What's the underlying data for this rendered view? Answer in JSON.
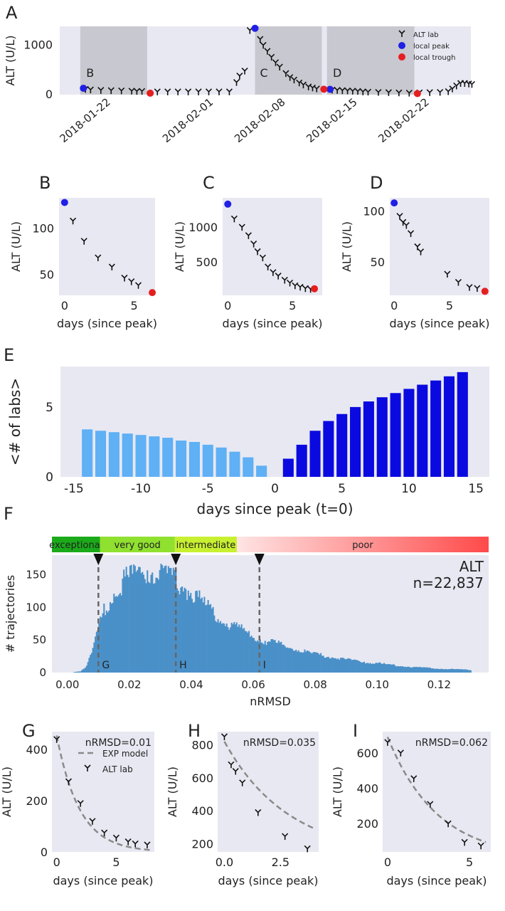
{
  "colors": {
    "panel_bg": "#e8e8f2",
    "shade": "#c8c8d0",
    "peak": "#1f1fe6",
    "trough": "#e51f1f",
    "marker": "#111111",
    "bar_before": "#5fb0f5",
    "bar_after": "#0a0ae0",
    "hist": "#4a90c8",
    "model": "#8a8a8a"
  },
  "chart_data": [
    {
      "panel": "A",
      "type": "scatter",
      "ylabel": "ALT (U/L)",
      "yticks": [
        0,
        1000
      ],
      "ylim": [
        0,
        1380
      ],
      "xlim": [
        "2018-01-17",
        "2018-02-26"
      ],
      "xticks": [
        "2018-01-22",
        "2018-02-01",
        "2018-02-08",
        "2018-02-15",
        "2018-02-22"
      ],
      "legend": {
        "placement": "top-right",
        "entries": [
          "ALT lab",
          "local peak",
          "local trough"
        ]
      },
      "annotations": [
        "B",
        "C",
        "D"
      ],
      "shaded_ranges": [
        [
          "2018-01-19",
          "2018-01-25.5"
        ],
        [
          "2018-02-05",
          "2018-02-11.5"
        ],
        [
          "2018-02-12",
          "2018-02-20.5"
        ]
      ],
      "lab": [
        [
          "2018-01-19.5",
          110
        ],
        [
          "2018-01-20",
          100
        ],
        [
          "2018-01-21",
          90
        ],
        [
          "2018-01-22",
          85
        ],
        [
          "2018-01-23",
          80
        ],
        [
          "2018-01-24",
          75
        ],
        [
          "2018-01-24.5",
          70
        ],
        [
          "2018-01-25",
          70
        ],
        [
          "2018-01-26.5",
          60
        ],
        [
          "2018-01-27.5",
          60
        ],
        [
          "2018-01-28.5",
          60
        ],
        [
          "2018-01-29.5",
          60
        ],
        [
          "2018-01-30.5",
          60
        ],
        [
          "2018-01-31.5",
          60
        ],
        [
          "2018-02-01.5",
          60
        ],
        [
          "2018-02-02.5",
          60
        ],
        [
          "2018-02-03.2",
          250
        ],
        [
          "2018-02-03.5",
          380
        ],
        [
          "2018-02-04",
          480
        ],
        [
          "2018-02-04.5",
          1300
        ],
        [
          "2018-02-05.5",
          1120
        ],
        [
          "2018-02-05.8",
          1000
        ],
        [
          "2018-02-06.2",
          880
        ],
        [
          "2018-02-06.6",
          760
        ],
        [
          "2018-02-07",
          650
        ],
        [
          "2018-02-07.4",
          560
        ],
        [
          "2018-02-08",
          430
        ],
        [
          "2018-02-08.4",
          350
        ],
        [
          "2018-02-08.8",
          300
        ],
        [
          "2018-02-09.3",
          240
        ],
        [
          "2018-02-09.7",
          200
        ],
        [
          "2018-02-10.2",
          160
        ],
        [
          "2018-02-10.6",
          140
        ],
        [
          "2018-02-11",
          120
        ],
        [
          "2018-02-12.5",
          95
        ],
        [
          "2018-02-13",
          90
        ],
        [
          "2018-02-13.5",
          85
        ],
        [
          "2018-02-14",
          80
        ],
        [
          "2018-02-14.5",
          75
        ],
        [
          "2018-02-15",
          70
        ],
        [
          "2018-02-15.5",
          60
        ],
        [
          "2018-02-16",
          55
        ],
        [
          "2018-02-17",
          50
        ],
        [
          "2018-02-18",
          45
        ],
        [
          "2018-02-19",
          40
        ],
        [
          "2018-02-20",
          35
        ],
        [
          "2018-02-21",
          40
        ],
        [
          "2018-02-22",
          45
        ],
        [
          "2018-02-23",
          50
        ],
        [
          "2018-02-23.8",
          65
        ],
        [
          "2018-02-24.2",
          120
        ],
        [
          "2018-02-24.6",
          180
        ],
        [
          "2018-02-25",
          230
        ],
        [
          "2018-02-25.4",
          230
        ],
        [
          "2018-02-25.8",
          220
        ],
        [
          "2018-02-26.1",
          210
        ]
      ],
      "peaks": [
        [
          "2018-01-19.3",
          130
        ],
        [
          "2018-02-05",
          1340
        ],
        [
          "2018-02-12.3",
          108
        ]
      ],
      "troughs": [
        [
          "2018-01-25.8",
          30
        ],
        [
          "2018-02-11.7",
          110
        ],
        [
          "2018-02-20.8",
          22
        ]
      ]
    },
    {
      "panel": "B",
      "type": "scatter",
      "xlabel": "days (since peak)",
      "ylabel": "ALT (U/L)",
      "xlim": [
        -0.4,
        6.5
      ],
      "ylim": [
        27,
        133
      ],
      "xticks": [
        0,
        5
      ],
      "yticks": [
        50,
        100
      ],
      "peak": [
        0,
        128
      ],
      "trough": [
        6.3,
        30
      ],
      "lab": [
        [
          0.6,
          108
        ],
        [
          1.4,
          86
        ],
        [
          2.4,
          68
        ],
        [
          3.4,
          58
        ],
        [
          4.3,
          46
        ],
        [
          4.8,
          42
        ],
        [
          5.3,
          38
        ]
      ]
    },
    {
      "panel": "C",
      "type": "scatter",
      "xlabel": "days (since peak)",
      "ylabel": "ALT (U/L)",
      "xlim": [
        -0.4,
        7.3
      ],
      "ylim": [
        20,
        1420
      ],
      "xticks": [
        0,
        5
      ],
      "yticks": [
        500,
        1000
      ],
      "peak": [
        0,
        1330
      ],
      "trough": [
        6.7,
        115
      ],
      "lab": [
        [
          0.5,
          1120
        ],
        [
          1.1,
          1000
        ],
        [
          1.6,
          880
        ],
        [
          2.0,
          760
        ],
        [
          2.3,
          650
        ],
        [
          2.7,
          560
        ],
        [
          3.1,
          430
        ],
        [
          3.5,
          350
        ],
        [
          3.9,
          300
        ],
        [
          4.4,
          240
        ],
        [
          4.8,
          200
        ],
        [
          5.2,
          160
        ],
        [
          5.6,
          140
        ],
        [
          6.0,
          120
        ],
        [
          6.4,
          110
        ]
      ]
    },
    {
      "panel": "D",
      "type": "scatter",
      "xlabel": "days (since peak)",
      "ylabel": "ALT (U/L)",
      "xlim": [
        -0.4,
        8.6
      ],
      "ylim": [
        17,
        113
      ],
      "xticks": [
        0,
        5
      ],
      "yticks": [
        50,
        100
      ],
      "peak": [
        0,
        108
      ],
      "trough": [
        8.2,
        21
      ],
      "lab": [
        [
          0.5,
          95
        ],
        [
          0.8,
          89
        ],
        [
          1.1,
          86
        ],
        [
          1.5,
          78
        ],
        [
          2.1,
          65
        ],
        [
          2.4,
          60
        ],
        [
          4.8,
          38
        ],
        [
          5.8,
          30
        ],
        [
          6.8,
          25
        ],
        [
          7.5,
          24
        ]
      ]
    },
    {
      "panel": "E",
      "type": "bar",
      "xlabel": "days since peak (t=0)",
      "ylabel": "<# of labs>",
      "xlim": [
        -16,
        16
      ],
      "ylim": [
        0,
        7.9
      ],
      "xticks": [
        -15,
        -10,
        -5,
        0,
        5,
        10,
        15
      ],
      "yticks": [
        0,
        5
      ],
      "before": {
        "x": [
          -14,
          -13,
          -12,
          -11,
          -10,
          -9,
          -8,
          -7,
          -6,
          -5,
          -4,
          -3,
          -2,
          -1
        ],
        "values": [
          3.4,
          3.3,
          3.2,
          3.1,
          3.0,
          2.9,
          2.8,
          2.6,
          2.5,
          2.3,
          2.1,
          1.8,
          1.4,
          0.8
        ]
      },
      "after": {
        "x": [
          1,
          2,
          3,
          4,
          5,
          6,
          7,
          8,
          9,
          10,
          11,
          12,
          13,
          14
        ],
        "values": [
          1.3,
          2.3,
          3.3,
          4.0,
          4.5,
          5.0,
          5.4,
          5.7,
          6.0,
          6.3,
          6.6,
          6.9,
          7.2,
          7.5
        ]
      }
    },
    {
      "panel": "F",
      "type": "bar",
      "xlabel": "nRMSD",
      "ylabel": "# trajectories",
      "xlim": [
        -0.005,
        0.136
      ],
      "ylim": [
        0,
        180
      ],
      "xticks": [
        0.0,
        0.02,
        0.04,
        0.06,
        0.08,
        0.1,
        0.12
      ],
      "xtick_labels": [
        "0.00",
        "0.02",
        "0.04",
        "0.06",
        "0.08",
        "0.10",
        "0.12"
      ],
      "yticks": [
        0,
        50,
        100,
        150
      ],
      "label": "ALT",
      "count": "n=22,837",
      "markers": [
        {
          "x": 0.01,
          "label": "G"
        },
        {
          "x": 0.035,
          "label": "H"
        },
        {
          "x": 0.062,
          "label": "I"
        }
      ],
      "categories": [
        {
          "name": "exceptional",
          "range": [
            -0.005,
            0.0105
          ],
          "color": "#1aaa1a"
        },
        {
          "name": "very good",
          "range": [
            0.0105,
            0.0347
          ],
          "color": "#90e030"
        },
        {
          "name": "intermediate",
          "range": [
            0.0347,
            0.0547
          ],
          "color": "#c8f030"
        },
        {
          "name": "poor",
          "range": [
            0.0547,
            0.136
          ],
          "color": "#ff4a4a"
        }
      ],
      "profile": [
        [
          0,
          0
        ],
        [
          0.004,
          2
        ],
        [
          0.006,
          10
        ],
        [
          0.008,
          35
        ],
        [
          0.01,
          70
        ],
        [
          0.012,
          100
        ],
        [
          0.015,
          125
        ],
        [
          0.02,
          148
        ],
        [
          0.025,
          158
        ],
        [
          0.03,
          152
        ],
        [
          0.035,
          140
        ],
        [
          0.04,
          122
        ],
        [
          0.045,
          100
        ],
        [
          0.05,
          82
        ],
        [
          0.055,
          68
        ],
        [
          0.06,
          55
        ],
        [
          0.07,
          40
        ],
        [
          0.08,
          28
        ],
        [
          0.09,
          20
        ],
        [
          0.1,
          14
        ],
        [
          0.11,
          9
        ],
        [
          0.12,
          6
        ],
        [
          0.13,
          4
        ]
      ]
    },
    {
      "panel": "G",
      "type": "line",
      "xlabel": "days (since peak)",
      "ylabel": "ALT (U/L)",
      "xlim": [
        -0.4,
        8.2
      ],
      "ylim": [
        0,
        470
      ],
      "xticks": [
        0,
        5
      ],
      "yticks": [
        0,
        200,
        400
      ],
      "label": "nRMSD=0.01",
      "legend": {
        "placement": "top-right",
        "entries": [
          "EXP model",
          "ALT lab"
        ]
      },
      "model": {
        "a": 455,
        "k": 0.52,
        "c": 0,
        "x": [
          0,
          8
        ]
      },
      "lab": [
        [
          0,
          440
        ],
        [
          1,
          275
        ],
        [
          2,
          190
        ],
        [
          3,
          120
        ],
        [
          4,
          75
        ],
        [
          5,
          55
        ],
        [
          6,
          40
        ],
        [
          6.6,
          32
        ],
        [
          7.6,
          28
        ]
      ]
    },
    {
      "panel": "H",
      "type": "line",
      "xlabel": "days (since peak)",
      "ylabel": "ALT (U/L)",
      "xlim": [
        -0.3,
        4.2
      ],
      "ylim": [
        150,
        880
      ],
      "xticks": [
        0.0,
        2.5
      ],
      "xtick_labels": [
        "0.0",
        "2.5"
      ],
      "yticks": [
        200,
        400,
        600,
        800
      ],
      "label": "nRMSD=0.035",
      "model": {
        "a": 700,
        "k": 0.35,
        "c": 120,
        "x": [
          0,
          4.0
        ]
      },
      "lab": [
        [
          0,
          850
        ],
        [
          0.3,
          680
        ],
        [
          0.5,
          640
        ],
        [
          0.8,
          570
        ],
        [
          1.5,
          390
        ],
        [
          2.7,
          245
        ],
        [
          3.7,
          170
        ]
      ]
    },
    {
      "panel": "I",
      "type": "line",
      "xlabel": "days (since peak)",
      "ylabel": "ALT (U/L)",
      "xlim": [
        -0.3,
        6.3
      ],
      "ylim": [
        40,
        720
      ],
      "xticks": [
        0,
        5
      ],
      "yticks": [
        200,
        400,
        600
      ],
      "label": "nRMSD=0.062",
      "model": {
        "a": 690,
        "k": 0.33,
        "c": 0,
        "x": [
          0,
          6
        ]
      },
      "lab": [
        [
          0,
          660
        ],
        [
          0.8,
          600
        ],
        [
          1.6,
          455
        ],
        [
          2.6,
          310
        ],
        [
          3.7,
          200
        ],
        [
          4.7,
          95
        ],
        [
          5.7,
          75
        ]
      ]
    }
  ]
}
